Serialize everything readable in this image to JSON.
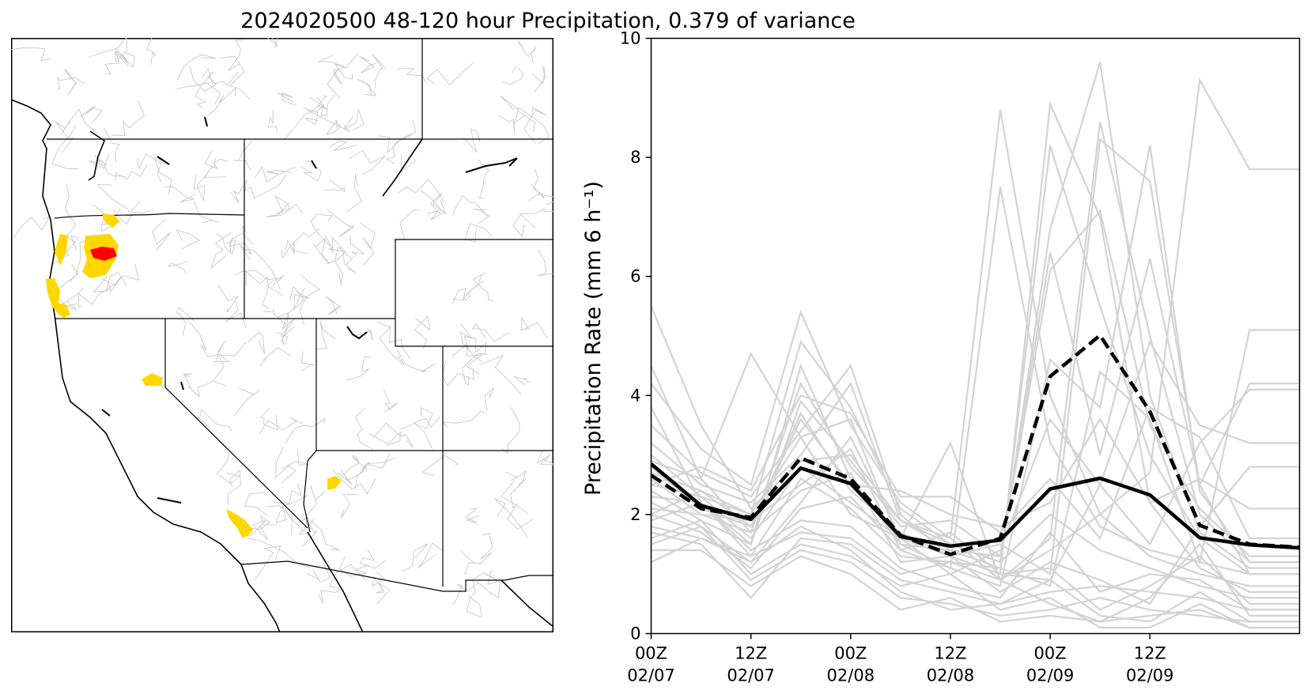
{
  "figure": {
    "title": "2024020500 48-120 hour Precipitation, 0.379 of variance"
  },
  "map": {
    "region": "Western United States river basins",
    "highlight_colors": {
      "high": "#ff0000",
      "moderate": "#ffd700"
    }
  },
  "chart_data": {
    "type": "line",
    "ylabel": "Precipitation Rate (mm 6 h⁻¹)",
    "ylim": [
      0,
      10
    ],
    "y_ticks": [
      0,
      2,
      4,
      6,
      8,
      10
    ],
    "x_tick_labels": [
      {
        "time": "00Z",
        "date": "02/07"
      },
      {
        "time": "12Z",
        "date": "02/07"
      },
      {
        "time": "00Z",
        "date": "02/08"
      },
      {
        "time": "12Z",
        "date": "02/08"
      },
      {
        "time": "00Z",
        "date": "02/09"
      },
      {
        "time": "12Z",
        "date": "02/09"
      }
    ],
    "x_step_hours": 6,
    "grid": false,
    "series": [
      {
        "style": "solid-black",
        "values": [
          2.85,
          2.15,
          1.92,
          2.78,
          2.52,
          1.63,
          1.47,
          1.57,
          2.43,
          2.61,
          2.33,
          1.61,
          1.49
        ]
      },
      {
        "style": "dashed-black",
        "values": [
          2.66,
          2.1,
          1.95,
          2.95,
          2.6,
          1.65,
          1.33,
          1.6,
          4.32,
          5.01,
          3.73,
          1.82,
          1.5
        ]
      }
    ],
    "ensemble_color": "#d3d3d3",
    "ensemble": [
      [
        5.5,
        3.5,
        2.1,
        2.9,
        3.0,
        1.9,
        1.5,
        1.2,
        2.0,
        1.4,
        1.1,
        0.8,
        0.6
      ],
      [
        4.5,
        2.6,
        4.7,
        3.3,
        2.0,
        1.6,
        1.3,
        1.0,
        0.9,
        2.5,
        1.5,
        3.2,
        4.1
      ],
      [
        4.2,
        3.1,
        2.5,
        5.4,
        3.5,
        2.2,
        1.6,
        8.8,
        4.0,
        2.0,
        1.3,
        1.0,
        0.8
      ],
      [
        3.8,
        2.2,
        1.5,
        4.5,
        2.6,
        1.5,
        1.1,
        7.5,
        3.2,
        1.8,
        1.4,
        1.2,
        1.0
      ],
      [
        3.5,
        2.7,
        2.3,
        3.4,
        4.5,
        2.0,
        1.3,
        1.0,
        8.9,
        7.0,
        2.2,
        1.1,
        0.7
      ],
      [
        3.2,
        2.5,
        2.2,
        3.0,
        4.2,
        1.9,
        1.4,
        1.1,
        8.2,
        5.5,
        3.0,
        1.6,
        1.0
      ],
      [
        3.0,
        2.3,
        2.0,
        4.9,
        3.8,
        2.1,
        1.5,
        1.2,
        6.8,
        9.6,
        4.0,
        1.7,
        1.1
      ],
      [
        2.9,
        2.6,
        1.7,
        4.2,
        2.8,
        1.9,
        1.6,
        0.9,
        1.6,
        8.6,
        5.0,
        2.0,
        1.2
      ],
      [
        2.8,
        2.1,
        1.8,
        3.7,
        2.4,
        1.7,
        1.3,
        1.5,
        1.0,
        8.3,
        7.6,
        2.5,
        1.0
      ],
      [
        2.7,
        2.4,
        2.0,
        3.3,
        3.6,
        1.5,
        1.4,
        1.3,
        6.1,
        7.1,
        3.5,
        2.1,
        1.3
      ],
      [
        2.6,
        2.0,
        1.9,
        2.5,
        3.1,
        1.4,
        1.1,
        0.8,
        4.6,
        3.8,
        8.2,
        2.4,
        1.2
      ],
      [
        2.5,
        2.3,
        1.6,
        2.8,
        2.2,
        1.6,
        3.2,
        0.9,
        1.4,
        2.0,
        2.7,
        9.3,
        7.8
      ],
      [
        2.4,
        1.9,
        1.5,
        3.9,
        2.9,
        1.8,
        1.9,
        1.3,
        6.4,
        3.0,
        6.3,
        2.5,
        4.2
      ],
      [
        2.3,
        2.2,
        1.3,
        2.6,
        2.1,
        1.3,
        1.2,
        1.1,
        0.8,
        4.4,
        3.6,
        1.2,
        5.1
      ],
      [
        2.2,
        1.8,
        1.2,
        2.2,
        3.3,
        1.6,
        1.0,
        1.4,
        3.6,
        2.5,
        4.9,
        3.5,
        3.2
      ],
      [
        2.1,
        2.0,
        1.7,
        2.4,
        2.7,
        1.2,
        1.3,
        0.7,
        1.2,
        0.9,
        0.5,
        1.8,
        2.8
      ],
      [
        2.0,
        1.7,
        1.1,
        2.1,
        2.3,
        1.4,
        1.7,
        1.0,
        1.1,
        0.4,
        0.8,
        1.3,
        0.5
      ],
      [
        1.9,
        2.2,
        1.4,
        1.9,
        1.8,
        1.1,
        0.8,
        0.6,
        1.7,
        0.7,
        1.0,
        0.9,
        0.4
      ],
      [
        1.8,
        1.6,
        1.3,
        1.7,
        1.6,
        1.0,
        1.2,
        0.9,
        0.5,
        0.2,
        0.6,
        1.5,
        0.3
      ],
      [
        1.7,
        1.5,
        0.6,
        1.6,
        1.5,
        0.9,
        0.7,
        0.5,
        0.9,
        0.3,
        0.2,
        0.7,
        0.2
      ],
      [
        1.6,
        1.9,
        1.0,
        1.5,
        1.3,
        0.8,
        1.0,
        0.4,
        0.6,
        0.1,
        0.1,
        0.5,
        0.1
      ],
      [
        1.5,
        1.8,
        0.9,
        1.4,
        1.2,
        0.6,
        0.5,
        0.3,
        0.4,
        0.6,
        0.4,
        0.3,
        0.2
      ],
      [
        1.4,
        1.4,
        0.8,
        1.3,
        1.0,
        0.4,
        0.6,
        0.2,
        0.3,
        0.2,
        0.3,
        0.4,
        0.1
      ],
      [
        1.2,
        1.6,
        1.2,
        1.8,
        1.4,
        0.7,
        0.4,
        0.5,
        0.7,
        0.8,
        0.7,
        0.6,
        0.4
      ],
      [
        2.0,
        2.4,
        1.8,
        3.6,
        2.5,
        2.4,
        2.0,
        1.8,
        2.2,
        3.6,
        2.2,
        2.6,
        2.1
      ],
      [
        2.5,
        2.8,
        2.4,
        4.0,
        3.7,
        2.3,
        2.3,
        1.7,
        2.6,
        1.6,
        3.8,
        3.3,
        1.6
      ]
    ]
  }
}
